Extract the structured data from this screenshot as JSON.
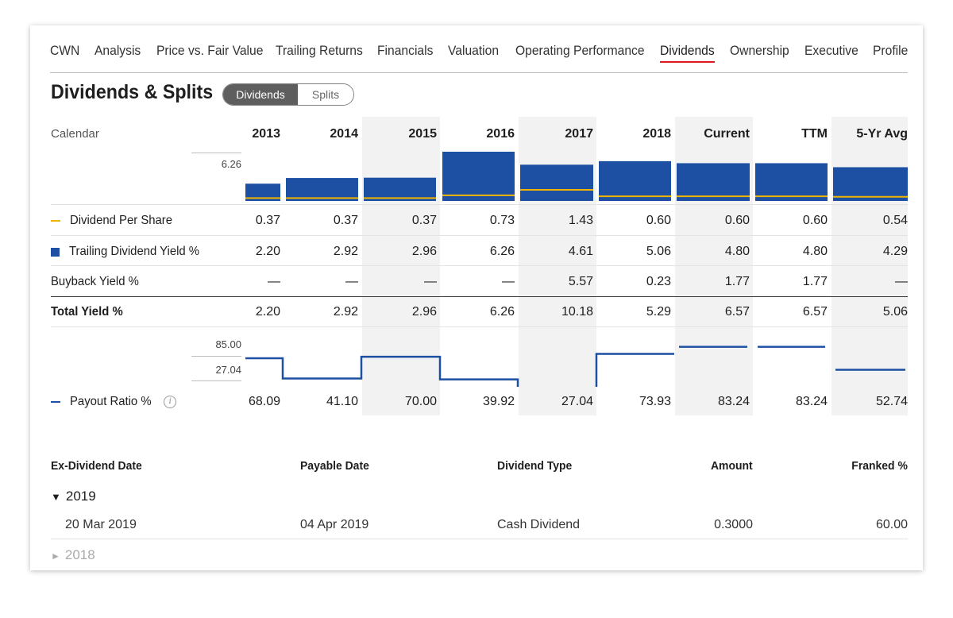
{
  "nav": {
    "tabs": [
      "CWN",
      "Analysis",
      "Price vs. Fair Value",
      "Trailing Returns",
      "Financials",
      "Valuation",
      "Operating Performance",
      "Dividends",
      "Ownership",
      "Executive",
      "Profile"
    ],
    "active_tab": "Dividends"
  },
  "header": {
    "title": "Dividends & Splits",
    "toggle": {
      "selected": "Dividends",
      "other": "Splits"
    }
  },
  "grid": {
    "calendar_label": "Calendar",
    "columns": [
      "2013",
      "2014",
      "2015",
      "2016",
      "2017",
      "2018",
      "Current",
      "TTM",
      "5-Yr Avg"
    ],
    "chart_scale": {
      "yield_max_label": "6.26",
      "payout_max_label": "85.00",
      "payout_min_label": "27.04"
    },
    "rows": [
      {
        "label": "Dividend Per Share",
        "legend": "line-yellow",
        "values": [
          "0.37",
          "0.37",
          "0.37",
          "0.73",
          "1.43",
          "0.60",
          "0.60",
          "0.60",
          "0.54"
        ]
      },
      {
        "label": "Trailing Dividend Yield %",
        "legend": "square-blue",
        "values": [
          "2.20",
          "2.92",
          "2.96",
          "6.26",
          "4.61",
          "5.06",
          "4.80",
          "4.80",
          "4.29"
        ]
      },
      {
        "label": "Buyback Yield %",
        "values": [
          "—",
          "—",
          "—",
          "—",
          "5.57",
          "0.23",
          "1.77",
          "1.77",
          "—"
        ]
      },
      {
        "label": "Total Yield %",
        "bold": true,
        "values": [
          "2.20",
          "2.92",
          "2.96",
          "6.26",
          "10.18",
          "5.29",
          "6.57",
          "6.57",
          "5.06"
        ]
      },
      {
        "label": "Payout Ratio %",
        "legend": "line-blue",
        "values": [
          "68.09",
          "41.10",
          "70.00",
          "39.92",
          "27.04",
          "73.93",
          "83.24",
          "83.24",
          "52.74"
        ]
      }
    ]
  },
  "chart_data": {
    "type": "bar",
    "categories": [
      "2013",
      "2014",
      "2015",
      "2016",
      "2017",
      "2018",
      "Current",
      "TTM",
      "5-Yr Avg"
    ],
    "series": [
      {
        "name": "Trailing Dividend Yield %",
        "values": [
          2.2,
          2.92,
          2.96,
          6.26,
          4.61,
          5.06,
          4.8,
          4.8,
          4.29
        ]
      },
      {
        "name": "Dividend Per Share",
        "values": [
          0.37,
          0.37,
          0.37,
          0.73,
          1.43,
          0.6,
          0.6,
          0.6,
          0.54
        ]
      },
      {
        "name": "Payout Ratio %",
        "values": [
          68.09,
          41.1,
          70.0,
          39.92,
          27.04,
          73.93,
          83.24,
          83.24,
          52.74
        ]
      }
    ],
    "colors": {
      "yield": "#1d50a2",
      "dps": "#f0b400",
      "payout": "#1d50a2"
    },
    "ylim_yield": [
      0,
      6.26
    ],
    "ylim_payout": [
      27.04,
      85.0
    ]
  },
  "history": {
    "headers": [
      "Ex-Dividend Date",
      "Payable Date",
      "Dividend Type",
      "Amount",
      "Franked %"
    ],
    "groups": [
      {
        "year": "2019",
        "expanded": true,
        "rows": [
          [
            "20 Mar 2019",
            "04 Apr 2019",
            "Cash Dividend",
            "0.3000",
            "60.00"
          ]
        ]
      },
      {
        "year": "2018",
        "expanded": false,
        "rows": []
      }
    ]
  },
  "colors": {
    "accent_red": "#e0181b",
    "bar_blue": "#1d50a2",
    "dps_yellow": "#f0b400"
  }
}
